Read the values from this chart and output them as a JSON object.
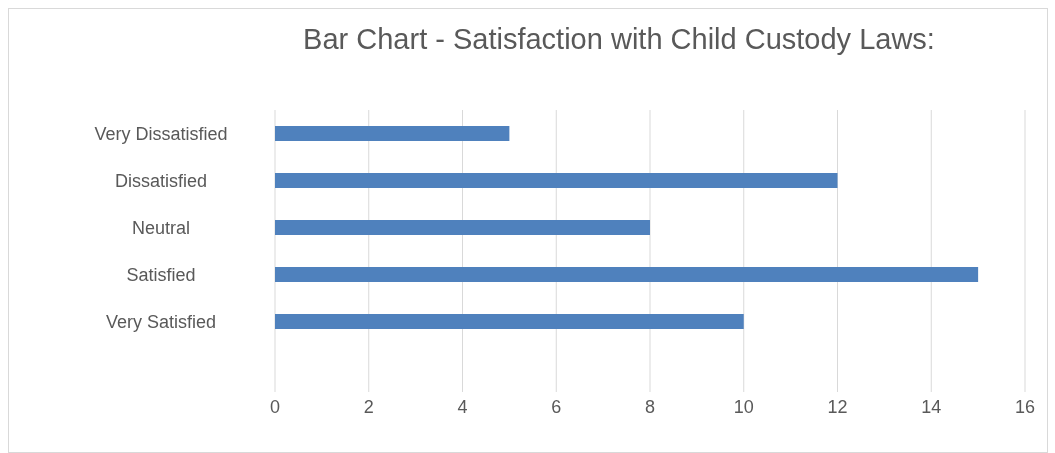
{
  "chart_data": {
    "type": "bar",
    "orientation": "horizontal",
    "title": "Bar Chart - Satisfaction with Child Custody Laws:",
    "categories": [
      "Very Dissatisfied",
      "Dissatisfied",
      "Neutral",
      "Satisfied",
      "Very Satisfied",
      null
    ],
    "values": [
      5,
      12,
      8,
      15,
      10,
      null
    ],
    "color": "#4f81bd",
    "xlim": [
      0,
      16
    ],
    "xticks": [
      0,
      2,
      4,
      6,
      8,
      10,
      12,
      14,
      16
    ],
    "grid": "x"
  }
}
